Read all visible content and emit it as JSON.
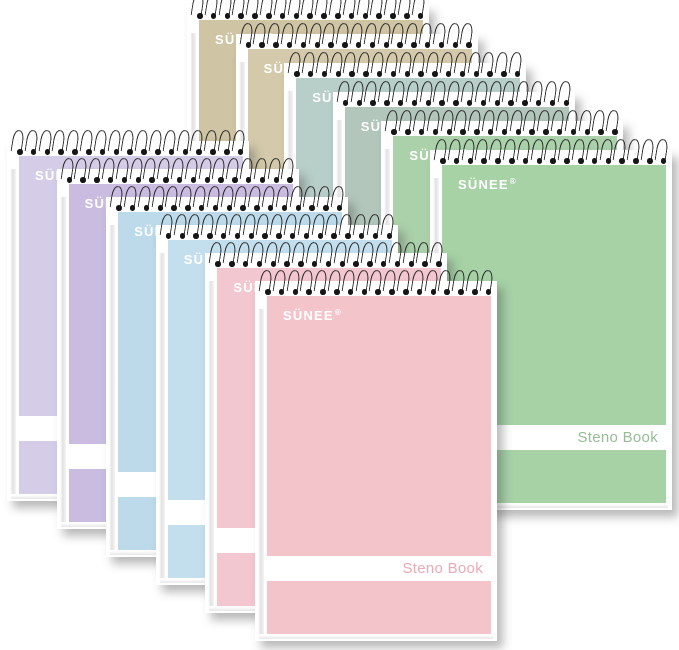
{
  "product": {
    "brand_logo": "SÜNEE",
    "registered_mark": "®",
    "cover_label": "Steno Book"
  },
  "colors": {
    "background": "#ffffff",
    "card": "#ffffff",
    "wire": "#222222",
    "logo_text": "#ffffff"
  },
  "stacks": [
    {
      "name": "back-row",
      "notebooks": [
        {
          "id": "tan",
          "cover_color": "#cfc4a4",
          "label_color": "#b2a57e"
        },
        {
          "id": "khaki",
          "cover_color": "#d4caab",
          "label_color": "#b8ac85"
        },
        {
          "id": "teal",
          "cover_color": "#b8cec9",
          "label_color": "#92b2ab"
        },
        {
          "id": "sage",
          "cover_color": "#b2c6bb",
          "label_color": "#8ca999"
        },
        {
          "id": "mint",
          "cover_color": "#abd1aa",
          "label_color": "#89b788"
        },
        {
          "id": "green",
          "cover_color": "#a6d2a6",
          "label_color": "#96bd96"
        }
      ]
    },
    {
      "name": "front-row",
      "notebooks": [
        {
          "id": "lavender",
          "cover_color": "#d5cde8",
          "label_color": "#b2a5d1"
        },
        {
          "id": "purple",
          "cover_color": "#c9bce0",
          "label_color": "#a894ca"
        },
        {
          "id": "blue",
          "cover_color": "#bcdaea",
          "label_color": "#8dbad6"
        },
        {
          "id": "light-blue",
          "cover_color": "#c3dfee",
          "label_color": "#96c2db"
        },
        {
          "id": "rose",
          "cover_color": "#f3c7cf",
          "label_color": "#e2a2b0"
        },
        {
          "id": "pink",
          "cover_color": "#f4c4cb",
          "label_color": "#eca9b5"
        }
      ]
    }
  ]
}
